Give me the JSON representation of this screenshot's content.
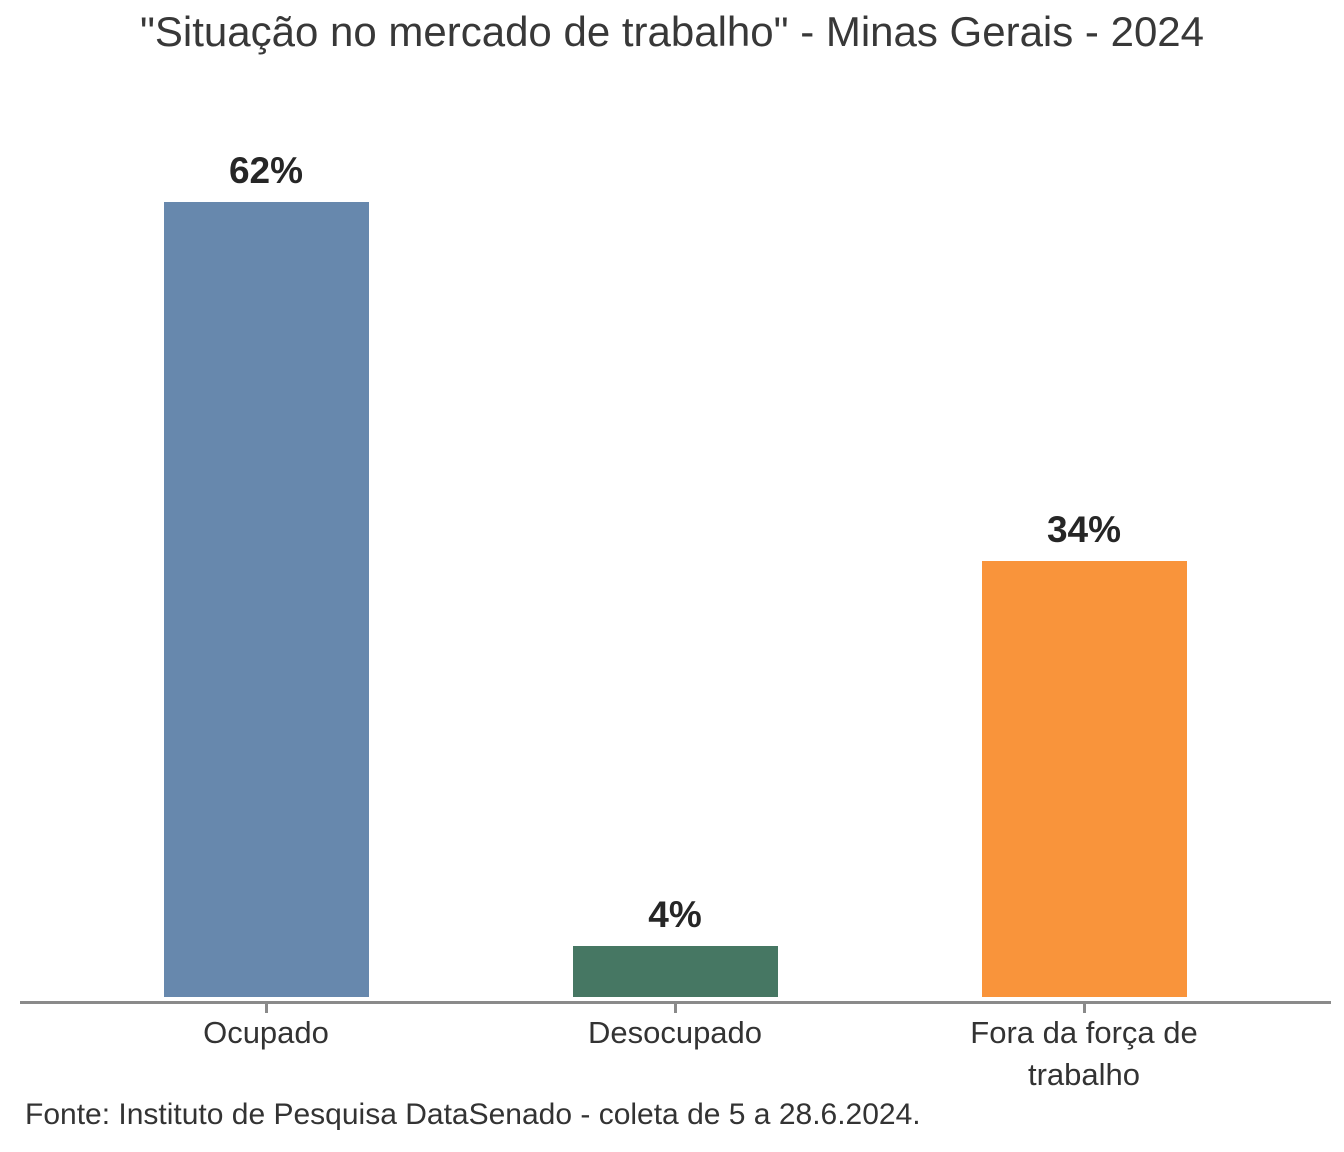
{
  "title": "\"Situação no mercado de trabalho\" - Minas Gerais - 2024",
  "source": "Fonte: Instituto de Pesquisa DataSenado - coleta de 5 a 28.6.2024.",
  "chart_data": {
    "type": "bar",
    "title": "\"Situação no mercado de trabalho\" - Minas Gerais - 2024",
    "categories": [
      "Ocupado",
      "Desocupado",
      "Fora da força de trabalho"
    ],
    "values": [
      62,
      4,
      34
    ],
    "value_labels": [
      "62%",
      "4%",
      "34%"
    ],
    "bar_colors": [
      "#6788AD",
      "#467763",
      "#F9943B"
    ],
    "xlabel": "",
    "ylabel": "",
    "ylim": [
      0,
      65
    ],
    "grid": false,
    "legend": "none",
    "axis_color": "#8A8A8A",
    "source_note": "Fonte: Instituto de Pesquisa DataSenado - coleta de 5 a 28.6.2024."
  }
}
